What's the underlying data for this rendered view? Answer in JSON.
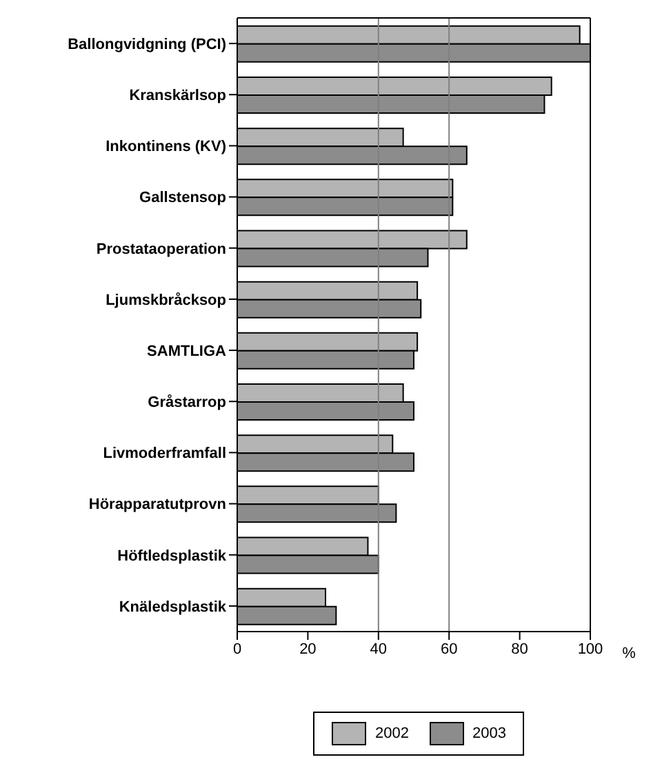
{
  "chart_data": {
    "type": "bar",
    "orientation": "horizontal",
    "xlabel": "%",
    "categories": [
      "Ballongvidgning (PCI)",
      "Kranskärlsop",
      "Inkontinens (KV)",
      "Gallstensop",
      "Prostataoperation",
      "Ljumskbråcksop",
      "SAMTLIGA",
      "Gråstarrop",
      "Livmoderframfall",
      "Hörapparatutprovn",
      "Höftledsplastik",
      "Knäledsplastik"
    ],
    "series": [
      {
        "name": "2002",
        "color": "#b4b4b4",
        "values": [
          97,
          89,
          47,
          61,
          65,
          51,
          51,
          47,
          44,
          40,
          37,
          25
        ]
      },
      {
        "name": "2003",
        "color": "#8c8c8c",
        "values": [
          100,
          87,
          65,
          61,
          54,
          52,
          50,
          50,
          50,
          45,
          40,
          28
        ]
      }
    ],
    "xlim": [
      0,
      100
    ],
    "xticks": [
      0,
      20,
      40,
      60,
      80,
      100
    ],
    "ref_lines": [
      {
        "axis": "x",
        "value": 40,
        "color": "#808080"
      },
      {
        "axis": "x",
        "value": 60,
        "color": "#808080"
      }
    ],
    "legend": "bottom"
  }
}
